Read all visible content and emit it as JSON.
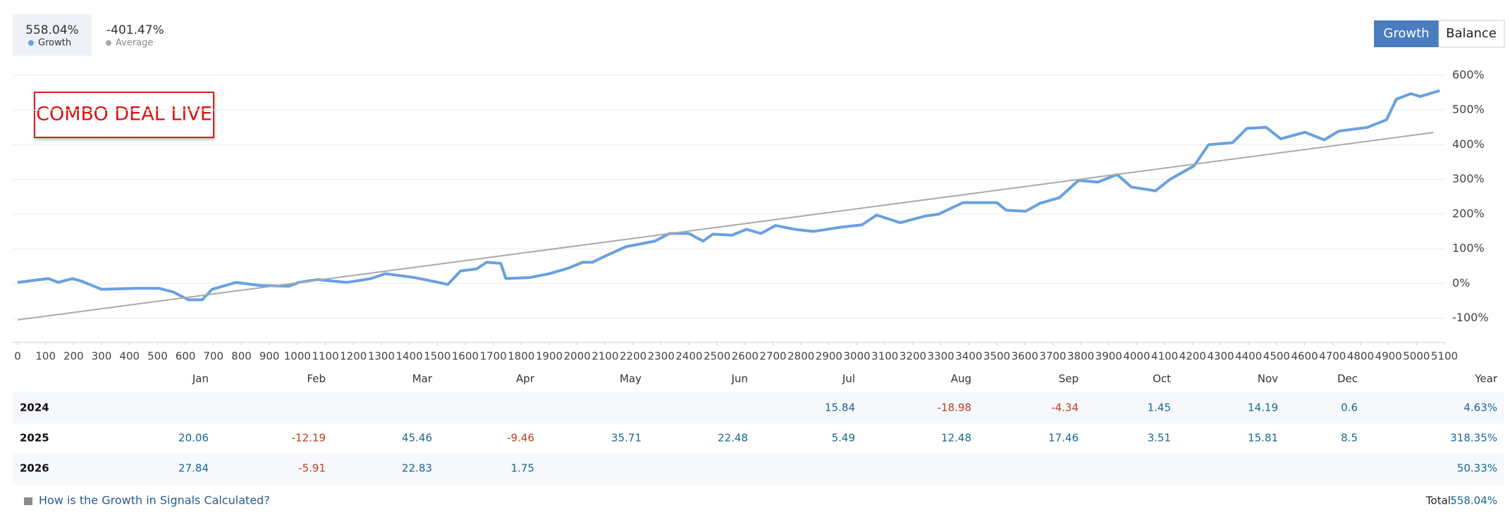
{
  "tabs": [
    {
      "label": "558.04%"
    },
    {
      "label": "-401.47%"
    }
  ],
  "buttons": [
    "Growth",
    "Balance"
  ],
  "chart_data": {
    "type": "line",
    "annotation": "COMBO DEAL LIVE",
    "series": [
      {
        "name": "Growth",
        "color": "#6aa0e0",
        "x": [
          0,
          110,
          145,
          196,
          230,
          300,
          420,
          505,
          557,
          610,
          660,
          695,
          781,
          867,
          970,
          1005,
          1073,
          1177,
          1263,
          1315,
          1418,
          1504,
          1538,
          1583,
          1641,
          1676,
          1727,
          1745,
          1831,
          1900,
          1968,
          2020,
          2054,
          2106,
          2175,
          2278,
          2330,
          2399,
          2450,
          2485,
          2553,
          2605,
          2657,
          2709,
          2777,
          2846,
          2932,
          3018,
          3070,
          3155,
          3242,
          3293,
          3379,
          3500,
          3534,
          3603,
          3654,
          3723,
          3792,
          3861,
          3930,
          3981,
          4067,
          4119,
          4205,
          4257,
          4343,
          4394,
          4463,
          4515,
          4601,
          4670,
          4722,
          4825,
          4893,
          4928,
          4980,
          5014,
          5083
        ],
        "values": [
          3,
          14,
          3,
          14,
          6,
          -17,
          -14,
          -14,
          -25,
          -47,
          -47,
          -17,
          3,
          -6,
          -8,
          3,
          11,
          3,
          14,
          28,
          17,
          3,
          -3,
          36,
          42,
          61,
          58,
          14,
          17,
          28,
          44,
          61,
          61,
          81,
          106,
          122,
          144,
          144,
          122,
          142,
          139,
          156,
          144,
          167,
          156,
          150,
          161,
          169,
          197,
          175,
          194,
          200,
          233,
          233,
          211,
          208,
          231,
          247,
          297,
          292,
          314,
          278,
          267,
          300,
          339,
          400,
          406,
          447,
          450,
          417,
          436,
          414,
          439,
          450,
          472,
          531,
          547,
          539,
          556
        ]
      },
      {
        "name": "Average",
        "color": "#aaaaaa",
        "x": [
          0,
          5060
        ],
        "values": [
          -105,
          435
        ]
      }
    ],
    "xlim": [
      0,
      5100
    ],
    "xticks": [
      0,
      100,
      200,
      300,
      400,
      500,
      600,
      700,
      800,
      900,
      1000,
      1100,
      1200,
      1300,
      1400,
      1500,
      1600,
      1700,
      1800,
      1900,
      2000,
      2100,
      2200,
      2300,
      2400,
      2500,
      2600,
      2700,
      2800,
      2900,
      3000,
      3100,
      3200,
      3300,
      3400,
      3500,
      3600,
      3700,
      3800,
      3900,
      4000,
      4100,
      4200,
      4300,
      4400,
      4500,
      4600,
      4700,
      4800,
      4900,
      5000,
      5100
    ],
    "ylim": [
      -170,
      610
    ],
    "yticks": [
      {
        "value": -100,
        "label": "-100%"
      },
      {
        "value": 0,
        "label": "0%"
      },
      {
        "value": 100,
        "label": "100%"
      },
      {
        "value": 200,
        "label": "200%"
      },
      {
        "value": 300,
        "label": "300%"
      },
      {
        "value": 400,
        "label": "400%"
      },
      {
        "value": 500,
        "label": "500%"
      },
      {
        "value": 600,
        "label": "600%"
      }
    ],
    "grid": true
  },
  "table": {
    "header": [
      "Jan",
      "Feb",
      "Mar",
      "Apr",
      "May",
      "Jun",
      "Jul",
      "Aug",
      "Sep",
      "Oct",
      "Nov",
      "Dec",
      "Year"
    ],
    "rows": [
      {
        "year": "2024",
        "cells": [
          null,
          null,
          null,
          null,
          null,
          null,
          15.84,
          -18.98,
          -4.34,
          1.45,
          14.19,
          0.6,
          "4.63%"
        ]
      },
      {
        "year": "2025",
        "cells": [
          20.06,
          -12.19,
          45.46,
          -9.46,
          35.71,
          22.48,
          5.49,
          12.48,
          17.46,
          3.51,
          15.81,
          8.5,
          "318.35%"
        ]
      },
      {
        "year": "2026",
        "cells": [
          27.84,
          -5.91,
          22.83,
          1.75,
          null,
          null,
          null,
          null,
          null,
          null,
          null,
          null,
          "50.33%"
        ]
      }
    ]
  },
  "footer": {
    "link": "How is the Growth in Signals Calculated?",
    "total_label": "Total:",
    "total_value": "558.04%"
  }
}
